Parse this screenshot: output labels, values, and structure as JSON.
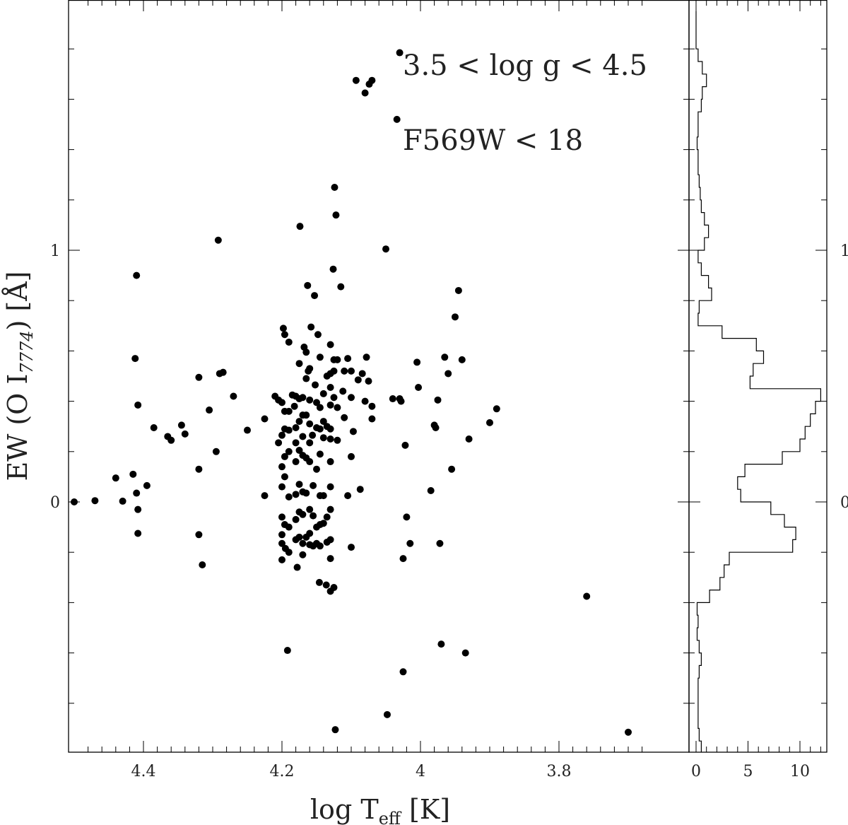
{
  "chart_data": [
    {
      "type": "scatter",
      "xlabel": {
        "main": "log T",
        "sub": "eff",
        "unit": " [K]"
      },
      "ylabel": {
        "pre": "EW (O I",
        "sub": "7774",
        "post": ") [Å]"
      },
      "xlim": [
        4.5,
        3.6
      ],
      "ylim": [
        -1.0,
        1.95
      ],
      "x_ticks": [
        4.4,
        4.2,
        4,
        3.8
      ],
      "x_tick_labels": [
        "4.4",
        "4.2",
        "4",
        "3.8"
      ],
      "y_ticks": [
        0,
        1
      ],
      "y_tick_labels": [
        "0",
        "1"
      ],
      "annotations": [
        "3.5 < log g < 4.5",
        "F569W < 18"
      ],
      "points": [
        [
          4.5,
          0.0
        ],
        [
          4.47,
          0.005
        ],
        [
          4.44,
          0.095
        ],
        [
          4.43,
          0.003
        ],
        [
          4.415,
          0.11
        ],
        [
          4.412,
          0.57
        ],
        [
          4.41,
          0.035
        ],
        [
          4.41,
          0.9
        ],
        [
          4.408,
          0.385
        ],
        [
          4.408,
          -0.03
        ],
        [
          4.408,
          -0.125
        ],
        [
          4.395,
          0.065
        ],
        [
          4.385,
          0.295
        ],
        [
          4.365,
          0.26
        ],
        [
          4.36,
          0.245
        ],
        [
          4.345,
          0.305
        ],
        [
          4.34,
          0.27
        ],
        [
          4.32,
          0.495
        ],
        [
          4.32,
          0.13
        ],
        [
          4.32,
          -0.13
        ],
        [
          4.315,
          -0.25
        ],
        [
          4.305,
          0.365
        ],
        [
          4.295,
          0.2
        ],
        [
          4.292,
          1.04
        ],
        [
          4.29,
          0.51
        ],
        [
          4.285,
          0.515
        ],
        [
          4.27,
          0.42
        ],
        [
          4.25,
          0.285
        ],
        [
          4.225,
          0.33
        ],
        [
          4.225,
          0.025
        ],
        [
          4.21,
          0.42
        ],
        [
          4.205,
          0.405
        ],
        [
          4.205,
          0.235
        ],
        [
          4.2,
          0.395
        ],
        [
          4.2,
          0.265
        ],
        [
          4.2,
          0.14
        ],
        [
          4.2,
          0.06
        ],
        [
          4.2,
          -0.06
        ],
        [
          4.2,
          -0.13
        ],
        [
          4.2,
          -0.165
        ],
        [
          4.2,
          -0.23
        ],
        [
          4.198,
          0.69
        ],
        [
          4.196,
          0.665
        ],
        [
          4.196,
          0.36
        ],
        [
          4.196,
          0.29
        ],
        [
          4.196,
          0.18
        ],
        [
          4.196,
          0.1
        ],
        [
          4.196,
          -0.09
        ],
        [
          4.195,
          -0.185
        ],
        [
          4.192,
          -0.59
        ],
        [
          4.19,
          0.635
        ],
        [
          4.19,
          0.36
        ],
        [
          4.19,
          0.285
        ],
        [
          4.19,
          0.2
        ],
        [
          4.19,
          0.02
        ],
        [
          4.19,
          -0.1
        ],
        [
          4.19,
          -0.2
        ],
        [
          4.185,
          0.425
        ],
        [
          4.182,
          0.38
        ],
        [
          4.18,
          0.42
        ],
        [
          4.18,
          0.295
        ],
        [
          4.18,
          0.235
        ],
        [
          4.18,
          0.16
        ],
        [
          4.18,
          0.03
        ],
        [
          4.18,
          -0.07
        ],
        [
          4.18,
          -0.15
        ],
        [
          4.178,
          -0.26
        ],
        [
          4.175,
          0.55
        ],
        [
          4.175,
          0.41
        ],
        [
          4.175,
          0.32
        ],
        [
          4.175,
          0.205
        ],
        [
          4.175,
          0.07
        ],
        [
          4.175,
          -0.04
        ],
        [
          4.175,
          -0.14
        ],
        [
          4.174,
          1.095
        ],
        [
          4.17,
          0.415
        ],
        [
          4.17,
          0.345
        ],
        [
          4.17,
          0.26
        ],
        [
          4.17,
          0.185
        ],
        [
          4.17,
          0.04
        ],
        [
          4.17,
          -0.05
        ],
        [
          4.17,
          -0.165
        ],
        [
          4.17,
          -0.21
        ],
        [
          4.168,
          0.615
        ],
        [
          4.165,
          0.595
        ],
        [
          4.165,
          0.49
        ],
        [
          4.165,
          0.345
        ],
        [
          4.165,
          0.175
        ],
        [
          4.165,
          0.035
        ],
        [
          4.165,
          -0.14
        ],
        [
          4.163,
          0.86
        ],
        [
          4.162,
          0.52
        ],
        [
          4.16,
          0.53
        ],
        [
          4.16,
          0.405
        ],
        [
          4.16,
          0.31
        ],
        [
          4.16,
          0.235
        ],
        [
          4.16,
          0.16
        ],
        [
          4.16,
          -0.03
        ],
        [
          4.16,
          -0.125
        ],
        [
          4.16,
          -0.17
        ],
        [
          4.158,
          0.695
        ],
        [
          4.156,
          0.265
        ],
        [
          4.155,
          0.065
        ],
        [
          4.155,
          -0.055
        ],
        [
          4.155,
          -0.175
        ],
        [
          4.153,
          0.82
        ],
        [
          4.152,
          0.465
        ],
        [
          4.15,
          0.395
        ],
        [
          4.15,
          0.295
        ],
        [
          4.15,
          0.13
        ],
        [
          4.15,
          -0.1
        ],
        [
          4.15,
          -0.165
        ],
        [
          4.148,
          0.665
        ],
        [
          4.146,
          -0.32
        ],
        [
          4.145,
          0.575
        ],
        [
          4.145,
          0.375
        ],
        [
          4.145,
          0.29
        ],
        [
          4.145,
          0.19
        ],
        [
          4.145,
          0.025
        ],
        [
          4.145,
          -0.09
        ],
        [
          4.145,
          -0.175
        ],
        [
          4.14,
          0.43
        ],
        [
          4.14,
          0.32
        ],
        [
          4.14,
          0.255
        ],
        [
          4.14,
          0.025
        ],
        [
          4.14,
          -0.085
        ],
        [
          4.136,
          -0.33
        ],
        [
          4.135,
          0.5
        ],
        [
          4.135,
          0.3
        ],
        [
          4.135,
          -0.06
        ],
        [
          4.135,
          -0.16
        ],
        [
          4.13,
          0.625
        ],
        [
          4.13,
          0.51
        ],
        [
          4.13,
          0.455
        ],
        [
          4.13,
          0.385
        ],
        [
          4.13,
          0.29
        ],
        [
          4.13,
          0.25
        ],
        [
          4.13,
          0.16
        ],
        [
          4.13,
          0.06
        ],
        [
          4.13,
          -0.03
        ],
        [
          4.13,
          -0.15
        ],
        [
          4.13,
          -0.225
        ],
        [
          4.13,
          -0.355
        ],
        [
          4.126,
          0.925
        ],
        [
          4.125,
          0.565
        ],
        [
          4.125,
          0.52
        ],
        [
          4.125,
          0.415
        ],
        [
          4.125,
          -0.34
        ],
        [
          4.124,
          1.25
        ],
        [
          4.123,
          -0.905
        ],
        [
          4.122,
          1.14
        ],
        [
          4.12,
          0.565
        ],
        [
          4.12,
          0.375
        ],
        [
          4.12,
          0.245
        ],
        [
          4.115,
          0.855
        ],
        [
          4.112,
          0.44
        ],
        [
          4.11,
          0.52
        ],
        [
          4.11,
          0.335
        ],
        [
          4.105,
          0.57
        ],
        [
          4.105,
          0.025
        ],
        [
          4.1,
          0.52
        ],
        [
          4.1,
          0.415
        ],
        [
          4.1,
          0.18
        ],
        [
          4.1,
          -0.18
        ],
        [
          4.097,
          0.28
        ],
        [
          4.093,
          1.675
        ],
        [
          4.09,
          0.485
        ],
        [
          4.087,
          0.05
        ],
        [
          4.084,
          0.51
        ],
        [
          4.08,
          1.625
        ],
        [
          4.08,
          0.4
        ],
        [
          4.078,
          0.575
        ],
        [
          4.075,
          0.48
        ],
        [
          4.074,
          1.66
        ],
        [
          4.07,
          0.38
        ],
        [
          4.07,
          1.675
        ],
        [
          4.07,
          0.33
        ],
        [
          4.05,
          1.005
        ],
        [
          4.048,
          -0.845
        ],
        [
          4.04,
          0.41
        ],
        [
          4.034,
          1.52
        ],
        [
          4.03,
          0.41
        ],
        [
          4.03,
          1.785
        ],
        [
          4.028,
          0.4
        ],
        [
          4.025,
          -0.225
        ],
        [
          4.025,
          -0.675
        ],
        [
          4.022,
          0.225
        ],
        [
          4.02,
          -0.06
        ],
        [
          4.015,
          -0.165
        ],
        [
          4.005,
          0.555
        ],
        [
          4.003,
          0.455
        ],
        [
          3.985,
          0.045
        ],
        [
          3.98,
          0.305
        ],
        [
          3.978,
          0.295
        ],
        [
          3.975,
          0.405
        ],
        [
          3.972,
          -0.165
        ],
        [
          3.97,
          -0.565
        ],
        [
          3.965,
          0.575
        ],
        [
          3.96,
          0.51
        ],
        [
          3.955,
          0.13
        ],
        [
          3.95,
          0.735
        ],
        [
          3.945,
          0.84
        ],
        [
          3.94,
          0.565
        ],
        [
          3.935,
          -0.6
        ],
        [
          3.93,
          0.25
        ],
        [
          3.9,
          0.315
        ],
        [
          3.89,
          0.37
        ],
        [
          3.76,
          -0.375
        ],
        [
          3.7,
          -0.915
        ]
      ]
    },
    {
      "type": "histogram",
      "orientation": "horizontal",
      "xlim": [
        -1,
        13
      ],
      "x_ticks": [
        0,
        5,
        10
      ],
      "x_tick_labels": [
        "0",
        "5",
        "10"
      ],
      "y_tick_labels": [
        "0",
        "1"
      ],
      "bins": [
        {
          "lo": -1.0,
          "hi": -0.975,
          "count": 0.5
        },
        {
          "lo": -0.975,
          "hi": -0.95,
          "count": 0.5
        },
        {
          "lo": -0.95,
          "hi": -0.9,
          "count": 0.3
        },
        {
          "lo": -0.9,
          "hi": -0.85,
          "count": 0.2
        },
        {
          "lo": -0.85,
          "hi": -0.8,
          "count": 0.2
        },
        {
          "lo": -0.8,
          "hi": -0.75,
          "count": 0.2
        },
        {
          "lo": -0.75,
          "hi": -0.7,
          "count": 0.2
        },
        {
          "lo": -0.7,
          "hi": -0.65,
          "count": 0.3
        },
        {
          "lo": -0.65,
          "hi": -0.6,
          "count": 0.5
        },
        {
          "lo": -0.6,
          "hi": -0.55,
          "count": 0.3
        },
        {
          "lo": -0.55,
          "hi": -0.5,
          "count": 0.1
        },
        {
          "lo": -0.5,
          "hi": -0.45,
          "count": 0.2
        },
        {
          "lo": -0.45,
          "hi": -0.4,
          "count": 0.1
        },
        {
          "lo": -0.4,
          "hi": -0.35,
          "count": 1.3
        },
        {
          "lo": -0.35,
          "hi": -0.3,
          "count": 2.3
        },
        {
          "lo": -0.3,
          "hi": -0.25,
          "count": 2.7
        },
        {
          "lo": -0.25,
          "hi": -0.2,
          "count": 3.2
        },
        {
          "lo": -0.2,
          "hi": -0.15,
          "count": 9.3
        },
        {
          "lo": -0.15,
          "hi": -0.1,
          "count": 9.6
        },
        {
          "lo": -0.1,
          "hi": -0.05,
          "count": 8.5
        },
        {
          "lo": -0.05,
          "hi": 0.0,
          "count": 7.2
        },
        {
          "lo": 0.0,
          "hi": 0.05,
          "count": 4.3
        },
        {
          "lo": 0.05,
          "hi": 0.1,
          "count": 4.0
        },
        {
          "lo": 0.1,
          "hi": 0.15,
          "count": 4.7
        },
        {
          "lo": 0.15,
          "hi": 0.2,
          "count": 8.3
        },
        {
          "lo": 0.2,
          "hi": 0.25,
          "count": 10.0
        },
        {
          "lo": 0.25,
          "hi": 0.3,
          "count": 10.5
        },
        {
          "lo": 0.3,
          "hi": 0.35,
          "count": 11.0
        },
        {
          "lo": 0.35,
          "hi": 0.4,
          "count": 11.5
        },
        {
          "lo": 0.4,
          "hi": 0.45,
          "count": 12.0
        },
        {
          "lo": 0.45,
          "hi": 0.5,
          "count": 5.2
        },
        {
          "lo": 0.5,
          "hi": 0.55,
          "count": 5.5
        },
        {
          "lo": 0.55,
          "hi": 0.6,
          "count": 6.5
        },
        {
          "lo": 0.6,
          "hi": 0.65,
          "count": 5.8
        },
        {
          "lo": 0.65,
          "hi": 0.7,
          "count": 2.5
        },
        {
          "lo": 0.7,
          "hi": 0.75,
          "count": 0.2
        },
        {
          "lo": 0.75,
          "hi": 0.8,
          "count": 0.3
        },
        {
          "lo": 0.8,
          "hi": 0.85,
          "count": 1.5
        },
        {
          "lo": 0.85,
          "hi": 0.9,
          "count": 1.2
        },
        {
          "lo": 0.9,
          "hi": 0.95,
          "count": 0.5
        },
        {
          "lo": 0.95,
          "hi": 1.0,
          "count": 0.2
        },
        {
          "lo": 1.0,
          "hi": 1.05,
          "count": 0.8
        },
        {
          "lo": 1.05,
          "hi": 1.1,
          "count": 1.2
        },
        {
          "lo": 1.1,
          "hi": 1.15,
          "count": 0.8
        },
        {
          "lo": 1.15,
          "hi": 1.2,
          "count": 0.5
        },
        {
          "lo": 1.2,
          "hi": 1.25,
          "count": 0.4
        },
        {
          "lo": 1.25,
          "hi": 1.3,
          "count": 0.3
        },
        {
          "lo": 1.3,
          "hi": 1.35,
          "count": 0.2
        },
        {
          "lo": 1.35,
          "hi": 1.4,
          "count": 0.2
        },
        {
          "lo": 1.4,
          "hi": 1.45,
          "count": 0.1
        },
        {
          "lo": 1.45,
          "hi": 1.5,
          "count": 0.2
        },
        {
          "lo": 1.5,
          "hi": 1.55,
          "count": 0.2
        },
        {
          "lo": 1.55,
          "hi": 1.6,
          "count": 0.5
        },
        {
          "lo": 1.6,
          "hi": 1.65,
          "count": 0.6
        },
        {
          "lo": 1.65,
          "hi": 1.7,
          "count": 1.0
        },
        {
          "lo": 1.7,
          "hi": 1.75,
          "count": 0.6
        },
        {
          "lo": 1.75,
          "hi": 1.8,
          "count": 0.2
        },
        {
          "lo": 1.8,
          "hi": 1.95,
          "count": 0.0
        }
      ]
    }
  ]
}
